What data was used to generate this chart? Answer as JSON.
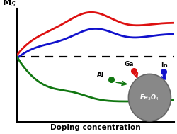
{
  "title": "",
  "xlabel": "Doping concentration",
  "ylabel": "M$_S$",
  "background_color": "#ffffff",
  "dashed_line_y": 0.3,
  "red_line_color": "#dd1111",
  "blue_line_color": "#1111cc",
  "green_line_color": "#117711",
  "label_Al": "Al",
  "label_Ga": "Ga",
  "label_In": "In",
  "label_Fe3O4": "Fe$_3$O$_4$",
  "dot_Al_color": "#117711",
  "dot_Ga_color": "#dd1111",
  "dot_In_color": "#1111cc",
  "sphere_color": "#888888",
  "sphere_edge_color": "#666666",
  "xlim": [
    0,
    1
  ],
  "ylim": [
    -0.45,
    0.85
  ]
}
